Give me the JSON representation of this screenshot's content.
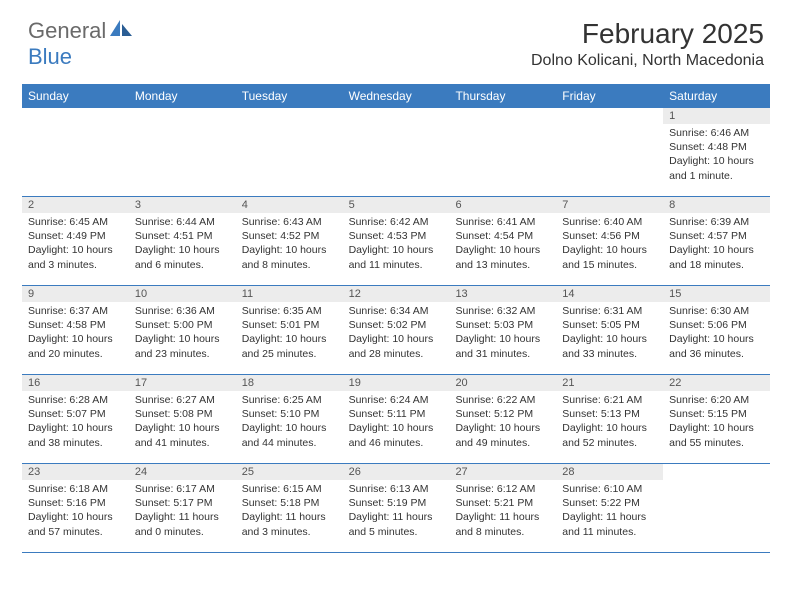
{
  "brand": {
    "general": "General",
    "blue": "Blue",
    "colors": {
      "accent": "#3b7bbf",
      "gray": "#6a6a6a"
    }
  },
  "title": "February 2025",
  "location": "Dolno Kolicani, North Macedonia",
  "weekdays": [
    "Sunday",
    "Monday",
    "Tuesday",
    "Wednesday",
    "Thursday",
    "Friday",
    "Saturday"
  ],
  "weeks": [
    [
      {
        "n": "",
        "lines": []
      },
      {
        "n": "",
        "lines": []
      },
      {
        "n": "",
        "lines": []
      },
      {
        "n": "",
        "lines": []
      },
      {
        "n": "",
        "lines": []
      },
      {
        "n": "",
        "lines": []
      },
      {
        "n": "1",
        "lines": [
          "Sunrise: 6:46 AM",
          "Sunset: 4:48 PM",
          "Daylight: 10 hours and 1 minute."
        ]
      }
    ],
    [
      {
        "n": "2",
        "lines": [
          "Sunrise: 6:45 AM",
          "Sunset: 4:49 PM",
          "Daylight: 10 hours and 3 minutes."
        ]
      },
      {
        "n": "3",
        "lines": [
          "Sunrise: 6:44 AM",
          "Sunset: 4:51 PM",
          "Daylight: 10 hours and 6 minutes."
        ]
      },
      {
        "n": "4",
        "lines": [
          "Sunrise: 6:43 AM",
          "Sunset: 4:52 PM",
          "Daylight: 10 hours and 8 minutes."
        ]
      },
      {
        "n": "5",
        "lines": [
          "Sunrise: 6:42 AM",
          "Sunset: 4:53 PM",
          "Daylight: 10 hours and 11 minutes."
        ]
      },
      {
        "n": "6",
        "lines": [
          "Sunrise: 6:41 AM",
          "Sunset: 4:54 PM",
          "Daylight: 10 hours and 13 minutes."
        ]
      },
      {
        "n": "7",
        "lines": [
          "Sunrise: 6:40 AM",
          "Sunset: 4:56 PM",
          "Daylight: 10 hours and 15 minutes."
        ]
      },
      {
        "n": "8",
        "lines": [
          "Sunrise: 6:39 AM",
          "Sunset: 4:57 PM",
          "Daylight: 10 hours and 18 minutes."
        ]
      }
    ],
    [
      {
        "n": "9",
        "lines": [
          "Sunrise: 6:37 AM",
          "Sunset: 4:58 PM",
          "Daylight: 10 hours and 20 minutes."
        ]
      },
      {
        "n": "10",
        "lines": [
          "Sunrise: 6:36 AM",
          "Sunset: 5:00 PM",
          "Daylight: 10 hours and 23 minutes."
        ]
      },
      {
        "n": "11",
        "lines": [
          "Sunrise: 6:35 AM",
          "Sunset: 5:01 PM",
          "Daylight: 10 hours and 25 minutes."
        ]
      },
      {
        "n": "12",
        "lines": [
          "Sunrise: 6:34 AM",
          "Sunset: 5:02 PM",
          "Daylight: 10 hours and 28 minutes."
        ]
      },
      {
        "n": "13",
        "lines": [
          "Sunrise: 6:32 AM",
          "Sunset: 5:03 PM",
          "Daylight: 10 hours and 31 minutes."
        ]
      },
      {
        "n": "14",
        "lines": [
          "Sunrise: 6:31 AM",
          "Sunset: 5:05 PM",
          "Daylight: 10 hours and 33 minutes."
        ]
      },
      {
        "n": "15",
        "lines": [
          "Sunrise: 6:30 AM",
          "Sunset: 5:06 PM",
          "Daylight: 10 hours and 36 minutes."
        ]
      }
    ],
    [
      {
        "n": "16",
        "lines": [
          "Sunrise: 6:28 AM",
          "Sunset: 5:07 PM",
          "Daylight: 10 hours and 38 minutes."
        ]
      },
      {
        "n": "17",
        "lines": [
          "Sunrise: 6:27 AM",
          "Sunset: 5:08 PM",
          "Daylight: 10 hours and 41 minutes."
        ]
      },
      {
        "n": "18",
        "lines": [
          "Sunrise: 6:25 AM",
          "Sunset: 5:10 PM",
          "Daylight: 10 hours and 44 minutes."
        ]
      },
      {
        "n": "19",
        "lines": [
          "Sunrise: 6:24 AM",
          "Sunset: 5:11 PM",
          "Daylight: 10 hours and 46 minutes."
        ]
      },
      {
        "n": "20",
        "lines": [
          "Sunrise: 6:22 AM",
          "Sunset: 5:12 PM",
          "Daylight: 10 hours and 49 minutes."
        ]
      },
      {
        "n": "21",
        "lines": [
          "Sunrise: 6:21 AM",
          "Sunset: 5:13 PM",
          "Daylight: 10 hours and 52 minutes."
        ]
      },
      {
        "n": "22",
        "lines": [
          "Sunrise: 6:20 AM",
          "Sunset: 5:15 PM",
          "Daylight: 10 hours and 55 minutes."
        ]
      }
    ],
    [
      {
        "n": "23",
        "lines": [
          "Sunrise: 6:18 AM",
          "Sunset: 5:16 PM",
          "Daylight: 10 hours and 57 minutes."
        ]
      },
      {
        "n": "24",
        "lines": [
          "Sunrise: 6:17 AM",
          "Sunset: 5:17 PM",
          "Daylight: 11 hours and 0 minutes."
        ]
      },
      {
        "n": "25",
        "lines": [
          "Sunrise: 6:15 AM",
          "Sunset: 5:18 PM",
          "Daylight: 11 hours and 3 minutes."
        ]
      },
      {
        "n": "26",
        "lines": [
          "Sunrise: 6:13 AM",
          "Sunset: 5:19 PM",
          "Daylight: 11 hours and 5 minutes."
        ]
      },
      {
        "n": "27",
        "lines": [
          "Sunrise: 6:12 AM",
          "Sunset: 5:21 PM",
          "Daylight: 11 hours and 8 minutes."
        ]
      },
      {
        "n": "28",
        "lines": [
          "Sunrise: 6:10 AM",
          "Sunset: 5:22 PM",
          "Daylight: 11 hours and 11 minutes."
        ]
      },
      {
        "n": "",
        "lines": []
      }
    ]
  ],
  "style": {
    "header_bg": "#3b7bbf",
    "header_text": "#ffffff",
    "daynum_bg": "#ececec",
    "border": "#3b7bbf",
    "body_font_size": 10.5,
    "weekday_font_size": 12,
    "title_font_size": 28,
    "location_font_size": 16
  }
}
